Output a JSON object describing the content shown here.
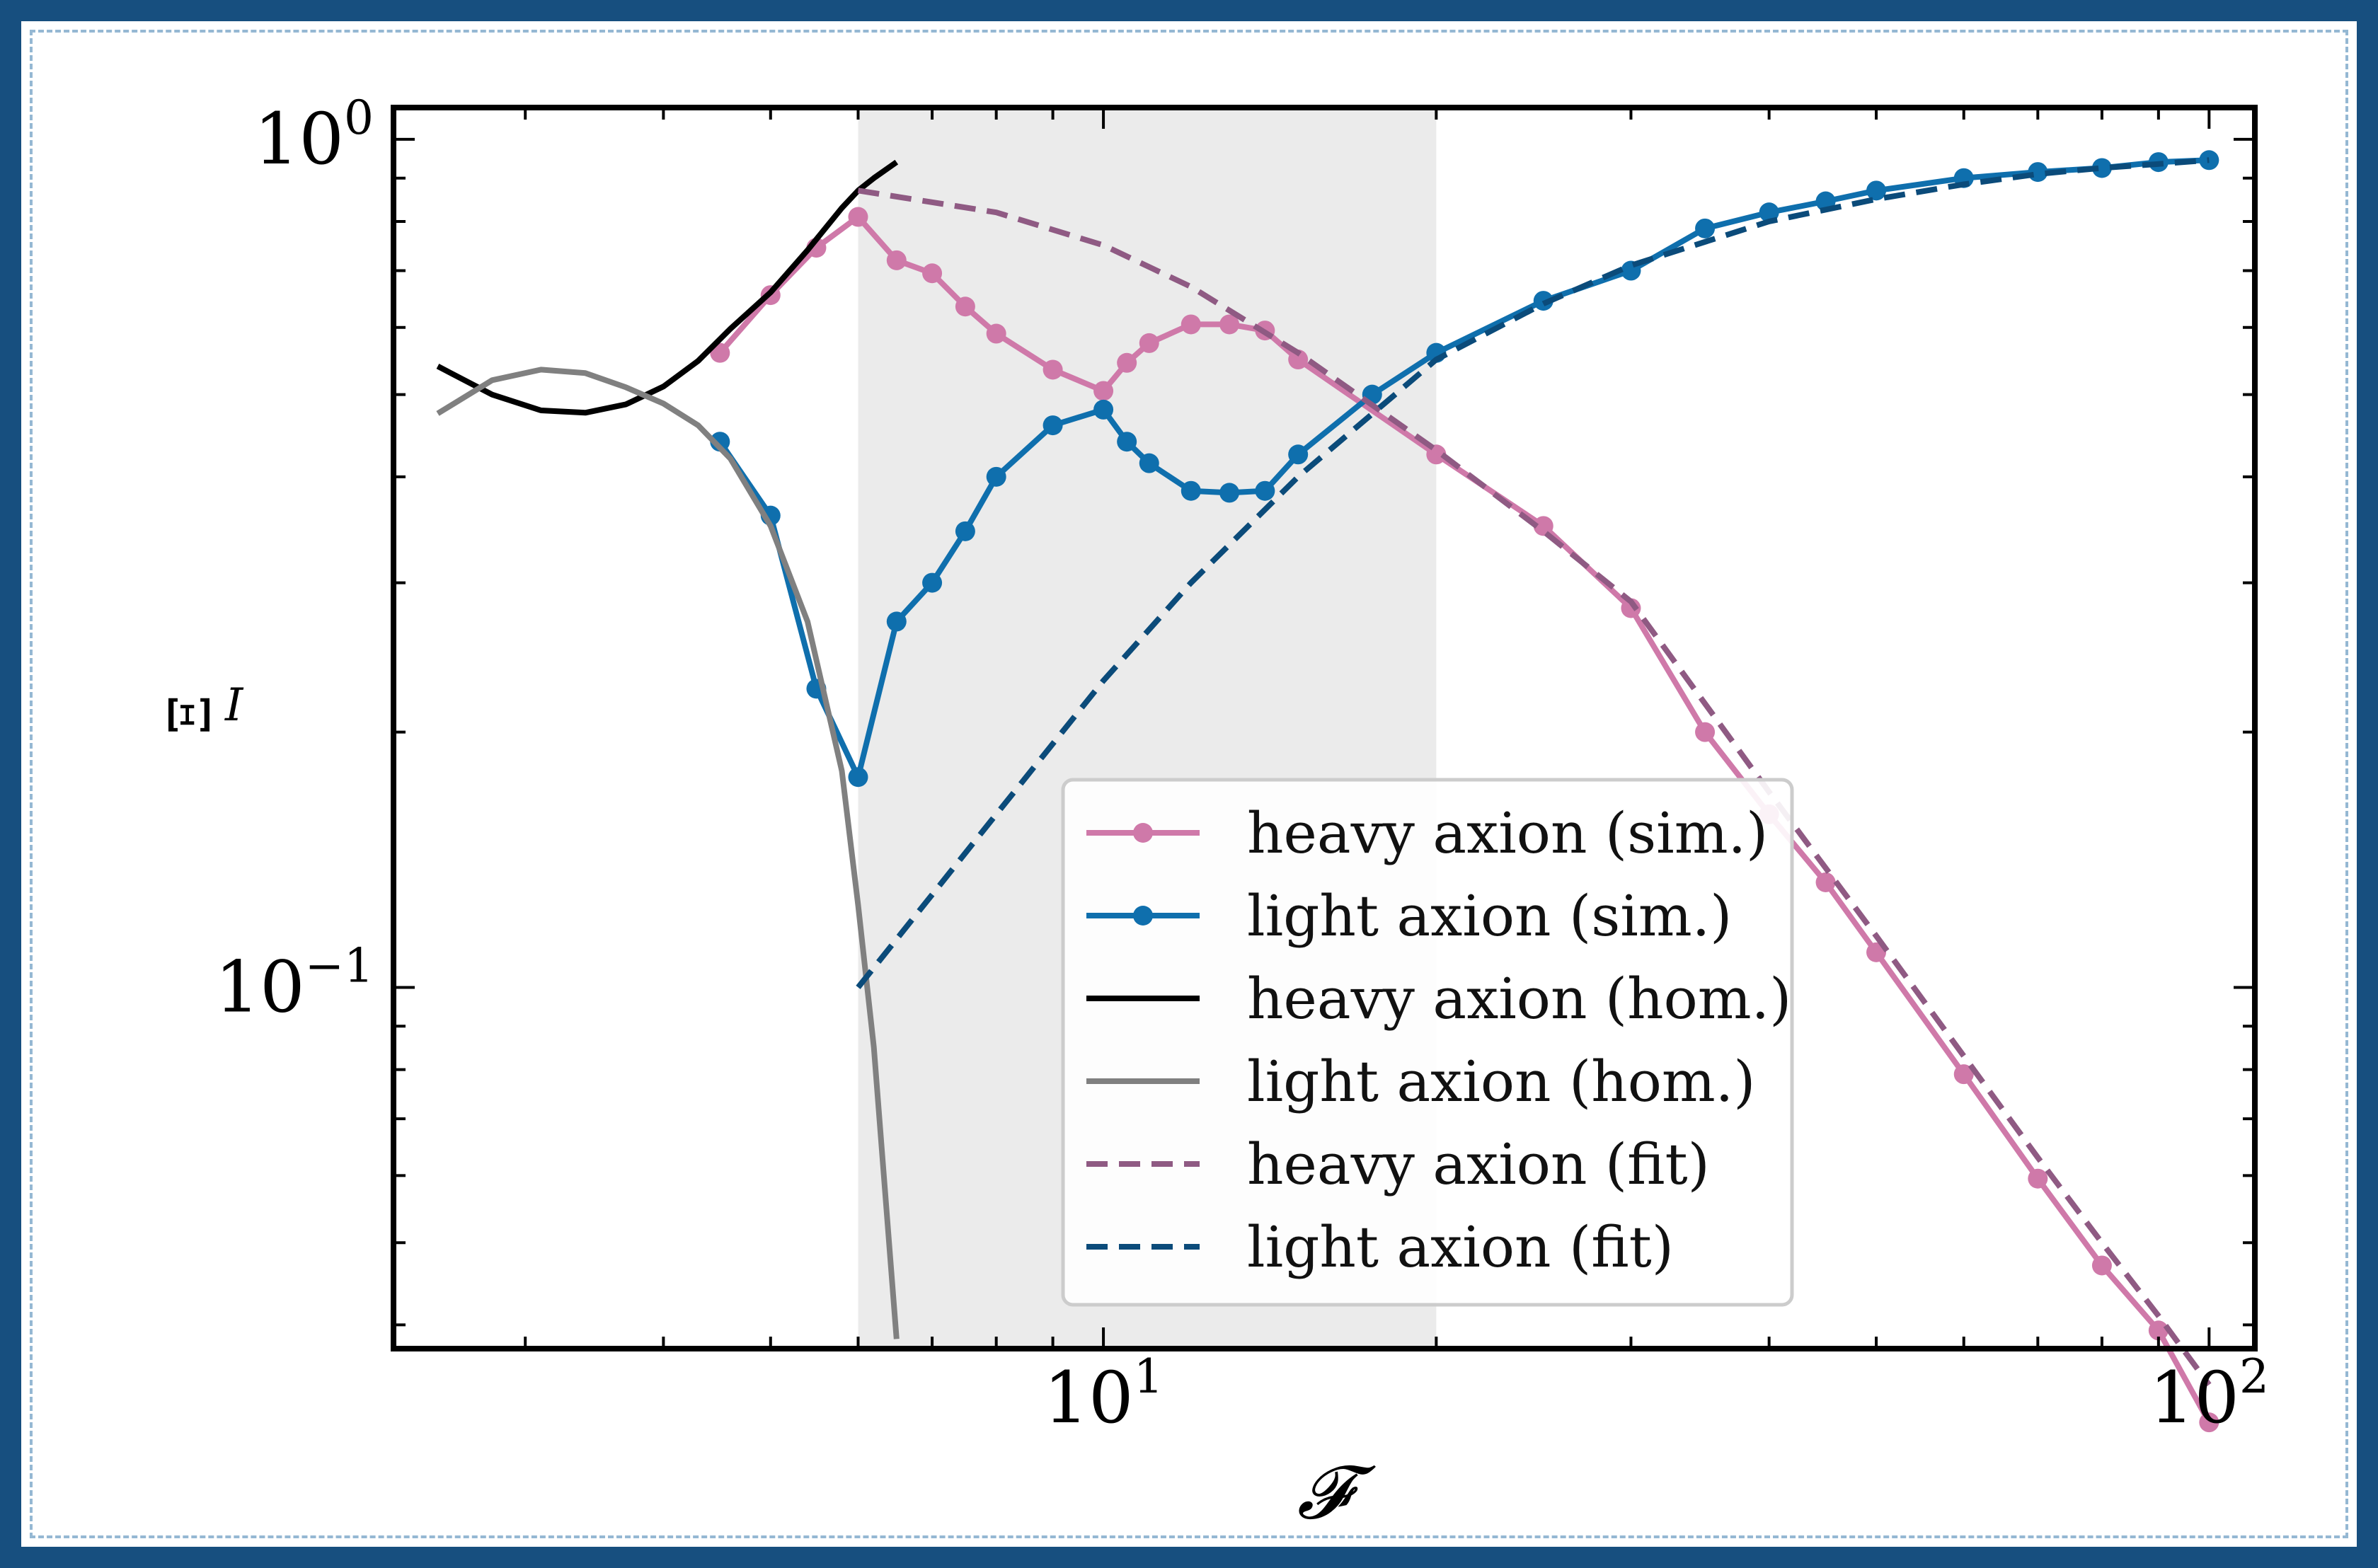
{
  "chart_data": {
    "type": "line",
    "xlabel": "𝓕",
    "ylabel": "Ξ",
    "ylabel_sub": "I",
    "xscale": "log",
    "yscale": "log",
    "xlim": [
      2.28,
      110
    ],
    "ylim": [
      0.0375,
      1.09
    ],
    "x_ticks": [
      {
        "value": 10,
        "base": "10",
        "exp": "1"
      },
      {
        "value": 100,
        "base": "10",
        "exp": "2"
      }
    ],
    "y_ticks": [
      {
        "value": 0.1,
        "base": "10",
        "exp": "−1"
      },
      {
        "value": 1,
        "base": "10",
        "exp": "0"
      }
    ],
    "shaded_region": {
      "x": [
        6,
        20
      ],
      "color": "#ebebeb"
    },
    "legend_position": "lower center",
    "series": [
      {
        "name": "heavy axion (sim.)",
        "color": "#cf79a9",
        "style": "solid-markers",
        "x": [
          4.5,
          5,
          5.5,
          6,
          6.5,
          7,
          7.5,
          8,
          9,
          10,
          10.5,
          11,
          12,
          13,
          14,
          15,
          20,
          25,
          30,
          35,
          40,
          45,
          50,
          60,
          70,
          80,
          90,
          100
        ],
        "y": [
          0.56,
          0.655,
          0.745,
          0.81,
          0.72,
          0.695,
          0.635,
          0.59,
          0.535,
          0.505,
          0.545,
          0.575,
          0.605,
          0.605,
          0.595,
          0.55,
          0.425,
          0.35,
          0.28,
          0.2,
          0.16,
          0.133,
          0.11,
          0.079,
          0.0595,
          0.047,
          0.0394,
          0.0307
        ]
      },
      {
        "name": "light axion (sim.)",
        "color": "#0f6fad",
        "style": "solid-markers",
        "x": [
          4.5,
          5,
          5.5,
          6,
          6.5,
          7,
          7.5,
          8,
          9,
          10,
          10.5,
          11,
          12,
          13,
          14,
          15,
          17.5,
          20,
          25,
          30,
          35,
          40,
          45,
          50,
          60,
          70,
          80,
          90,
          100
        ],
        "y": [
          0.44,
          0.36,
          0.225,
          0.177,
          0.27,
          0.3,
          0.345,
          0.4,
          0.46,
          0.48,
          0.44,
          0.415,
          0.385,
          0.383,
          0.385,
          0.425,
          0.5,
          0.56,
          0.645,
          0.7,
          0.785,
          0.82,
          0.845,
          0.87,
          0.9,
          0.915,
          0.925,
          0.94,
          0.945
        ]
      },
      {
        "name": "heavy axion (hom.)",
        "color": "#000000",
        "style": "solid",
        "x": [
          2.5,
          2.8,
          3.1,
          3.4,
          3.7,
          4.0,
          4.3,
          4.6,
          5.0,
          5.4,
          5.8,
          6.0,
          6.2,
          6.5
        ],
        "y": [
          0.54,
          0.5,
          0.479,
          0.476,
          0.487,
          0.511,
          0.548,
          0.598,
          0.66,
          0.74,
          0.83,
          0.87,
          0.9,
          0.94
        ]
      },
      {
        "name": "light axion (hom.)",
        "color": "#808080",
        "style": "solid",
        "x": [
          2.5,
          2.8,
          3.1,
          3.4,
          3.7,
          4.0,
          4.3,
          4.6,
          5.0,
          5.4,
          5.8,
          6.0,
          6.2,
          6.5
        ],
        "y": [
          0.475,
          0.52,
          0.535,
          0.53,
          0.51,
          0.488,
          0.46,
          0.42,
          0.35,
          0.27,
          0.18,
          0.125,
          0.085,
          0.0385
        ]
      },
      {
        "name": "heavy axion (fit)",
        "color": "#8f5a83",
        "style": "dashed",
        "x": [
          6,
          8,
          10,
          12,
          15,
          20,
          25,
          30,
          40,
          50,
          60,
          70,
          80,
          90,
          100
        ],
        "y": [
          0.87,
          0.82,
          0.75,
          0.67,
          0.56,
          0.43,
          0.345,
          0.285,
          0.17,
          0.115,
          0.083,
          0.063,
          0.05,
          0.041,
          0.034
        ]
      },
      {
        "name": "light axion (fit)",
        "color": "#0b4b7a",
        "style": "dashed",
        "x": [
          6,
          8,
          10,
          12,
          15,
          20,
          25,
          30,
          40,
          50,
          60,
          70,
          80,
          90,
          100
        ],
        "y": [
          0.1,
          0.16,
          0.23,
          0.3,
          0.4,
          0.55,
          0.64,
          0.71,
          0.8,
          0.85,
          0.885,
          0.91,
          0.925,
          0.935,
          0.945
        ]
      }
    ]
  }
}
